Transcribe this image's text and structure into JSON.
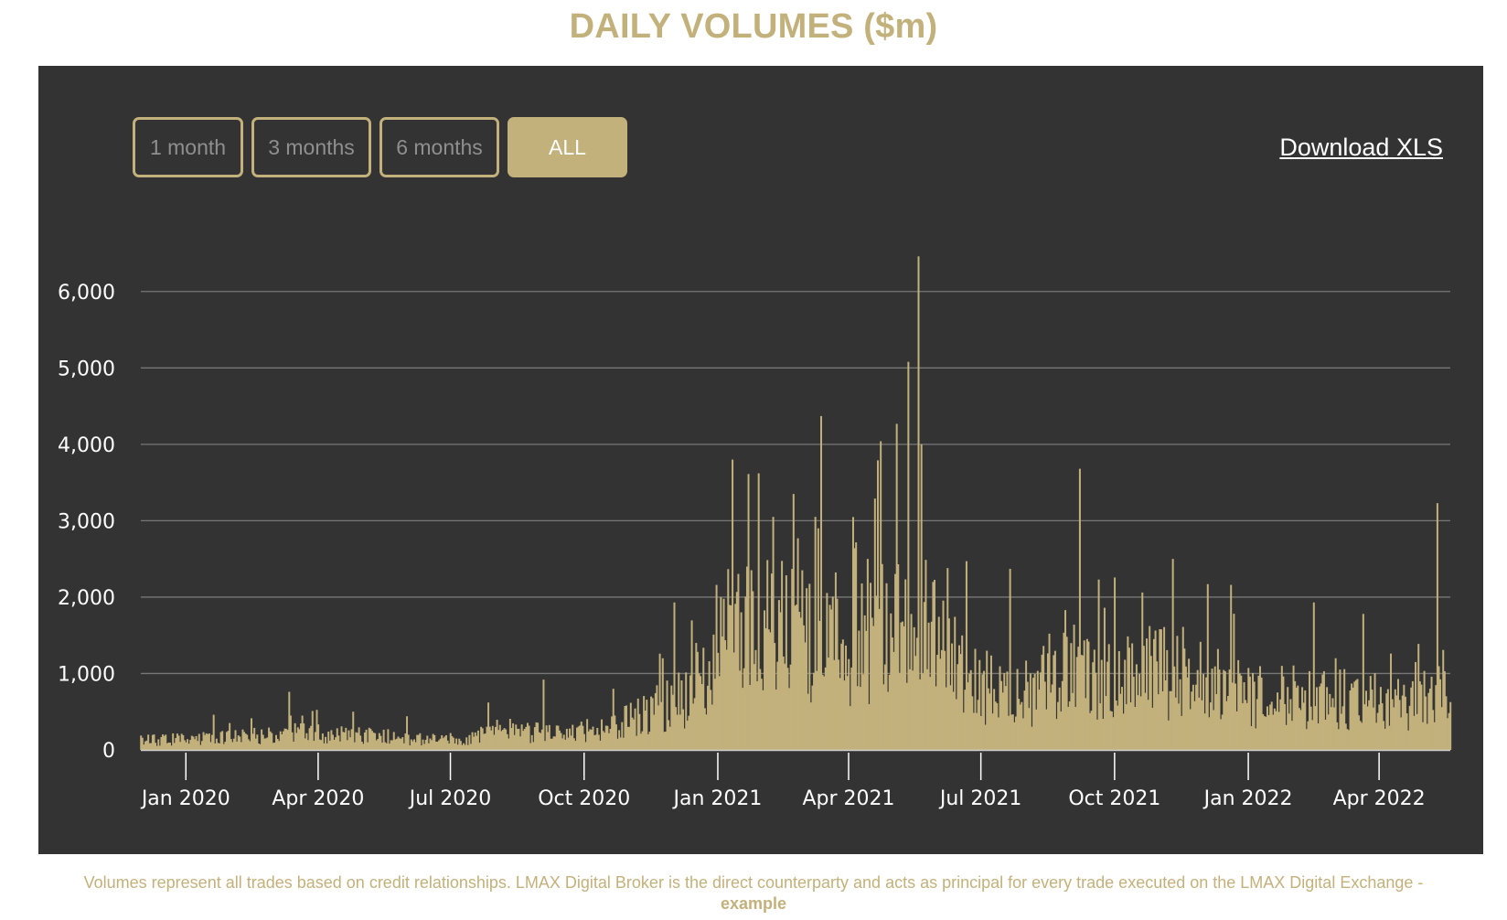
{
  "title": "DAILY VOLUMES ($m)",
  "range_buttons": [
    {
      "label": "1 month",
      "active": false
    },
    {
      "label": "3 months",
      "active": false
    },
    {
      "label": "6 months",
      "active": false
    },
    {
      "label": "ALL",
      "active": true
    }
  ],
  "download_label": "Download XLS",
  "footnote": {
    "text": "Volumes represent all trades based on credit relationships. LMAX Digital Broker is the direct counterparty and acts as principal for every trade executed on the LMAX Digital Exchange -",
    "emphasis": "example"
  },
  "colors": {
    "accent": "#c3b17c",
    "panel": "#333333",
    "grid": "#777777",
    "text": "#ffffff"
  },
  "chart_data": {
    "type": "bar",
    "title": "DAILY VOLUMES ($m)",
    "xlabel": "",
    "ylabel": "",
    "ylim": [
      0,
      6500
    ],
    "yticks": [
      0,
      1000,
      2000,
      3000,
      4000,
      5000,
      6000
    ],
    "ytick_labels": [
      "0",
      "1,000",
      "2,000",
      "3,000",
      "4,000",
      "5,000",
      "6,000"
    ],
    "grid": true,
    "x_range": [
      "2019-12-01",
      "2022-05-20"
    ],
    "xtick_dates": [
      "2020-01-01",
      "2020-04-01",
      "2020-07-01",
      "2020-10-01",
      "2021-01-01",
      "2021-04-01",
      "2021-07-01",
      "2021-10-01",
      "2022-01-01",
      "2022-04-01"
    ],
    "xtick_labels": [
      "Jan 2020",
      "Apr 2020",
      "Jul 2020",
      "Oct 2020",
      "Jan 2021",
      "Apr 2021",
      "Jul 2021",
      "Oct 2021",
      "Jan 2022",
      "Apr 2022"
    ],
    "series": [
      {
        "color": "#c3b17c",
        "trend": [
          {
            "date": "2019-12-01",
            "value": 130
          },
          {
            "date": "2020-02-01",
            "value": 170
          },
          {
            "date": "2020-03-15",
            "value": 250
          },
          {
            "date": "2020-05-01",
            "value": 200
          },
          {
            "date": "2020-07-01",
            "value": 140
          },
          {
            "date": "2020-08-10",
            "value": 260
          },
          {
            "date": "2020-09-15",
            "value": 230
          },
          {
            "date": "2020-10-15",
            "value": 300
          },
          {
            "date": "2020-11-15",
            "value": 520
          },
          {
            "date": "2020-12-15",
            "value": 850
          },
          {
            "date": "2021-01-10",
            "value": 1650
          },
          {
            "date": "2021-02-10",
            "value": 1700
          },
          {
            "date": "2021-03-10",
            "value": 1450
          },
          {
            "date": "2021-04-01",
            "value": 1300
          },
          {
            "date": "2021-04-20",
            "value": 1850
          },
          {
            "date": "2021-05-15",
            "value": 2200
          },
          {
            "date": "2021-06-10",
            "value": 1200
          },
          {
            "date": "2021-07-10",
            "value": 850
          },
          {
            "date": "2021-08-01",
            "value": 700
          },
          {
            "date": "2021-08-20",
            "value": 1150
          },
          {
            "date": "2021-09-15",
            "value": 1050
          },
          {
            "date": "2021-10-15",
            "value": 1100
          },
          {
            "date": "2021-11-15",
            "value": 1100
          },
          {
            "date": "2021-12-15",
            "value": 850
          },
          {
            "date": "2022-01-15",
            "value": 650
          },
          {
            "date": "2022-02-15",
            "value": 700
          },
          {
            "date": "2022-03-20",
            "value": 750
          },
          {
            "date": "2022-04-20",
            "value": 600
          },
          {
            "date": "2022-05-10",
            "value": 650
          },
          {
            "date": "2022-05-20",
            "value": 1300
          }
        ],
        "spikes": [
          {
            "date": "2020-01-20",
            "value": 460
          },
          {
            "date": "2020-03-12",
            "value": 760
          },
          {
            "date": "2020-04-25",
            "value": 500
          },
          {
            "date": "2020-06-01",
            "value": 440
          },
          {
            "date": "2020-07-27",
            "value": 620
          },
          {
            "date": "2020-09-03",
            "value": 920
          },
          {
            "date": "2020-10-21",
            "value": 800
          },
          {
            "date": "2020-11-24",
            "value": 1200
          },
          {
            "date": "2020-12-02",
            "value": 1930
          },
          {
            "date": "2020-12-17",
            "value": 1400
          },
          {
            "date": "2020-12-31",
            "value": 2160
          },
          {
            "date": "2021-01-11",
            "value": 3800
          },
          {
            "date": "2021-01-21",
            "value": 2400
          },
          {
            "date": "2021-01-29",
            "value": 3620
          },
          {
            "date": "2021-02-08",
            "value": 3050
          },
          {
            "date": "2021-02-22",
            "value": 3350
          },
          {
            "date": "2021-03-09",
            "value": 3050
          },
          {
            "date": "2021-03-13",
            "value": 4370
          },
          {
            "date": "2021-04-05",
            "value": 2640
          },
          {
            "date": "2021-04-14",
            "value": 2500
          },
          {
            "date": "2021-04-19",
            "value": 3290
          },
          {
            "date": "2021-04-23",
            "value": 4040
          },
          {
            "date": "2021-05-12",
            "value": 5080
          },
          {
            "date": "2021-05-19",
            "value": 6460
          },
          {
            "date": "2021-05-21",
            "value": 4000
          },
          {
            "date": "2021-06-08",
            "value": 2380
          },
          {
            "date": "2021-06-21",
            "value": 2470
          },
          {
            "date": "2021-07-21",
            "value": 2370
          },
          {
            "date": "2021-09-07",
            "value": 3680
          },
          {
            "date": "2021-09-20",
            "value": 2230
          },
          {
            "date": "2021-10-20",
            "value": 2060
          },
          {
            "date": "2021-11-10",
            "value": 2500
          },
          {
            "date": "2021-12-04",
            "value": 2170
          },
          {
            "date": "2021-12-20",
            "value": 2160
          },
          {
            "date": "2022-01-24",
            "value": 1100
          },
          {
            "date": "2022-02-15",
            "value": 1930
          },
          {
            "date": "2022-03-02",
            "value": 1200
          },
          {
            "date": "2022-03-21",
            "value": 1780
          },
          {
            "date": "2022-04-26",
            "value": 1150
          },
          {
            "date": "2022-05-11",
            "value": 3230
          }
        ]
      }
    ]
  }
}
